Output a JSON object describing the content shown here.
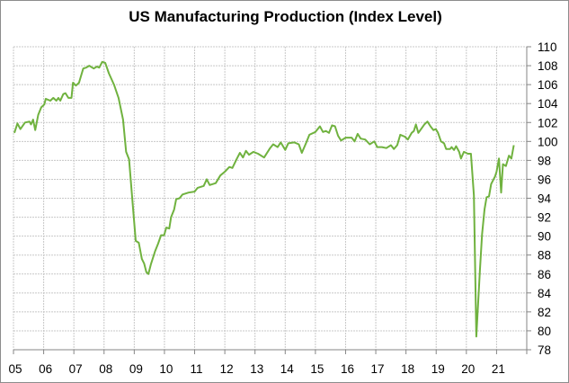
{
  "chart_data": {
    "type": "line",
    "title": "US Manufacturing Production (Index Level)",
    "xlabel": "",
    "ylabel": "",
    "xlim": [
      2005,
      2022
    ],
    "ylim": [
      78,
      110
    ],
    "x_tick_labels": [
      "05",
      "06",
      "07",
      "08",
      "09",
      "10",
      "11",
      "12",
      "13",
      "14",
      "15",
      "16",
      "17",
      "18",
      "19",
      "20",
      "21"
    ],
    "y_ticks": [
      78,
      80,
      82,
      84,
      86,
      88,
      90,
      92,
      94,
      96,
      98,
      100,
      102,
      104,
      106,
      108,
      110
    ],
    "y_axis_side": "right",
    "grid": true,
    "legend": "none",
    "series": [
      {
        "name": "US Manufacturing Production",
        "color": "#70b23f",
        "points": [
          [
            2005.03,
            100.9
          ],
          [
            2005.13,
            101.9
          ],
          [
            2005.23,
            101.3
          ],
          [
            2005.38,
            102.0
          ],
          [
            2005.53,
            102.1
          ],
          [
            2005.58,
            101.8
          ],
          [
            2005.65,
            102.3
          ],
          [
            2005.72,
            101.2
          ],
          [
            2005.82,
            102.8
          ],
          [
            2005.92,
            103.6
          ],
          [
            2006.02,
            103.9
          ],
          [
            2006.07,
            104.5
          ],
          [
            2006.22,
            104.3
          ],
          [
            2006.32,
            104.6
          ],
          [
            2006.42,
            104.3
          ],
          [
            2006.49,
            104.6
          ],
          [
            2006.55,
            104.3
          ],
          [
            2006.65,
            105.0
          ],
          [
            2006.72,
            105.1
          ],
          [
            2006.82,
            104.6
          ],
          [
            2006.92,
            104.6
          ],
          [
            2006.97,
            106.2
          ],
          [
            2007.07,
            105.9
          ],
          [
            2007.17,
            106.2
          ],
          [
            2007.31,
            107.7
          ],
          [
            2007.41,
            107.8
          ],
          [
            2007.51,
            108.0
          ],
          [
            2007.66,
            107.7
          ],
          [
            2007.76,
            107.9
          ],
          [
            2007.84,
            107.8
          ],
          [
            2007.94,
            108.4
          ],
          [
            2008.04,
            108.3
          ],
          [
            2008.16,
            107.2
          ],
          [
            2008.33,
            106.0
          ],
          [
            2008.48,
            104.6
          ],
          [
            2008.63,
            102.3
          ],
          [
            2008.73,
            98.9
          ],
          [
            2008.83,
            98.1
          ],
          [
            2008.95,
            93.3
          ],
          [
            2009.05,
            89.5
          ],
          [
            2009.15,
            89.3
          ],
          [
            2009.25,
            87.6
          ],
          [
            2009.33,
            87.1
          ],
          [
            2009.4,
            86.2
          ],
          [
            2009.47,
            86.0
          ],
          [
            2009.55,
            87.0
          ],
          [
            2009.69,
            88.4
          ],
          [
            2009.79,
            89.2
          ],
          [
            2009.89,
            90.1
          ],
          [
            2009.99,
            90.1
          ],
          [
            2010.06,
            90.9
          ],
          [
            2010.16,
            90.8
          ],
          [
            2010.22,
            92.0
          ],
          [
            2010.32,
            92.8
          ],
          [
            2010.39,
            93.9
          ],
          [
            2010.5,
            94.0
          ],
          [
            2010.6,
            94.4
          ],
          [
            2010.8,
            94.6
          ],
          [
            2011.0,
            94.7
          ],
          [
            2011.1,
            95.1
          ],
          [
            2011.3,
            95.3
          ],
          [
            2011.4,
            96.0
          ],
          [
            2011.5,
            95.4
          ],
          [
            2011.7,
            95.6
          ],
          [
            2011.85,
            96.4
          ],
          [
            2012.0,
            96.8
          ],
          [
            2012.15,
            97.3
          ],
          [
            2012.25,
            97.2
          ],
          [
            2012.4,
            98.2
          ],
          [
            2012.5,
            98.8
          ],
          [
            2012.6,
            98.3
          ],
          [
            2012.7,
            99.0
          ],
          [
            2012.8,
            98.6
          ],
          [
            2012.95,
            98.9
          ],
          [
            2013.1,
            98.7
          ],
          [
            2013.3,
            98.3
          ],
          [
            2013.5,
            99.3
          ],
          [
            2013.6,
            99.7
          ],
          [
            2013.75,
            99.4
          ],
          [
            2013.85,
            99.9
          ],
          [
            2014.0,
            99.1
          ],
          [
            2014.1,
            99.8
          ],
          [
            2014.3,
            99.9
          ],
          [
            2014.45,
            99.7
          ],
          [
            2014.55,
            98.8
          ],
          [
            2014.7,
            99.9
          ],
          [
            2014.8,
            100.7
          ],
          [
            2015.0,
            101.0
          ],
          [
            2015.15,
            101.6
          ],
          [
            2015.25,
            101.0
          ],
          [
            2015.35,
            101.1
          ],
          [
            2015.45,
            100.9
          ],
          [
            2015.55,
            101.7
          ],
          [
            2015.65,
            101.6
          ],
          [
            2015.75,
            100.6
          ],
          [
            2015.85,
            100.1
          ],
          [
            2016.0,
            100.4
          ],
          [
            2016.2,
            100.4
          ],
          [
            2016.3,
            100.0
          ],
          [
            2016.4,
            100.8
          ],
          [
            2016.5,
            100.3
          ],
          [
            2016.65,
            100.2
          ],
          [
            2016.8,
            99.7
          ],
          [
            2016.95,
            100.0
          ],
          [
            2017.05,
            99.4
          ],
          [
            2017.2,
            99.4
          ],
          [
            2017.35,
            99.3
          ],
          [
            2017.5,
            99.6
          ],
          [
            2017.6,
            99.2
          ],
          [
            2017.71,
            99.6
          ],
          [
            2017.81,
            100.7
          ],
          [
            2017.96,
            100.5
          ],
          [
            2018.06,
            100.2
          ],
          [
            2018.19,
            100.9
          ],
          [
            2018.26,
            101.1
          ],
          [
            2018.33,
            101.8
          ],
          [
            2018.41,
            100.9
          ],
          [
            2018.61,
            101.8
          ],
          [
            2018.71,
            102.1
          ],
          [
            2018.81,
            101.6
          ],
          [
            2018.91,
            101.2
          ],
          [
            2018.99,
            101.3
          ],
          [
            2019.06,
            100.9
          ],
          [
            2019.16,
            100.0
          ],
          [
            2019.26,
            99.8
          ],
          [
            2019.33,
            99.2
          ],
          [
            2019.46,
            99.2
          ],
          [
            2019.51,
            99.4
          ],
          [
            2019.59,
            99.1
          ],
          [
            2019.66,
            99.5
          ],
          [
            2019.76,
            98.9
          ],
          [
            2019.82,
            98.2
          ],
          [
            2019.92,
            98.9
          ],
          [
            2020.05,
            98.7
          ],
          [
            2020.15,
            98.7
          ],
          [
            2020.25,
            94.3
          ],
          [
            2020.33,
            79.4
          ],
          [
            2020.45,
            86.4
          ],
          [
            2020.52,
            90.2
          ],
          [
            2020.6,
            92.8
          ],
          [
            2020.67,
            94.1
          ],
          [
            2020.75,
            94.2
          ],
          [
            2020.82,
            95.5
          ],
          [
            2020.95,
            96.3
          ],
          [
            2021.0,
            96.8
          ],
          [
            2021.08,
            98.2
          ],
          [
            2021.15,
            94.6
          ],
          [
            2021.21,
            97.6
          ],
          [
            2021.31,
            97.4
          ],
          [
            2021.41,
            98.5
          ],
          [
            2021.49,
            98.2
          ],
          [
            2021.57,
            99.6
          ]
        ]
      }
    ]
  }
}
